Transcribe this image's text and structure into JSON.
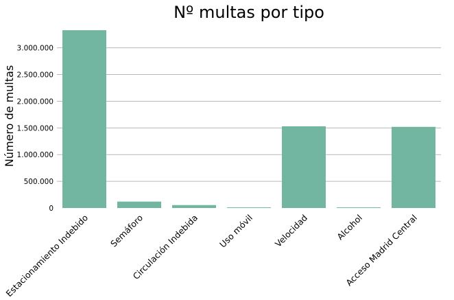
{
  "chart_data": {
    "type": "bar",
    "title": "Nº multas por tipo",
    "xlabel": "",
    "ylabel": "Número de multas",
    "categories": [
      "Estacionamiento Indebido",
      "Semáforo",
      "Circulación Indebida",
      "Uso móvil",
      "Velocidad",
      "Alcohol",
      "Acceso Madrid Central"
    ],
    "values": [
      3330000,
      120000,
      55000,
      12000,
      1530000,
      12000,
      1520000
    ],
    "ylim": [
      0,
      3330000
    ],
    "yticks": [
      0,
      500000,
      1000000,
      1500000,
      2000000,
      2500000,
      3000000
    ],
    "ytick_labels": [
      "0",
      "500.000",
      "1.000.000",
      "1.500.000",
      "2.000.000",
      "2.500.000",
      "3.000.000"
    ],
    "grid": "horizontal",
    "bar_color": "#72b6a1"
  }
}
